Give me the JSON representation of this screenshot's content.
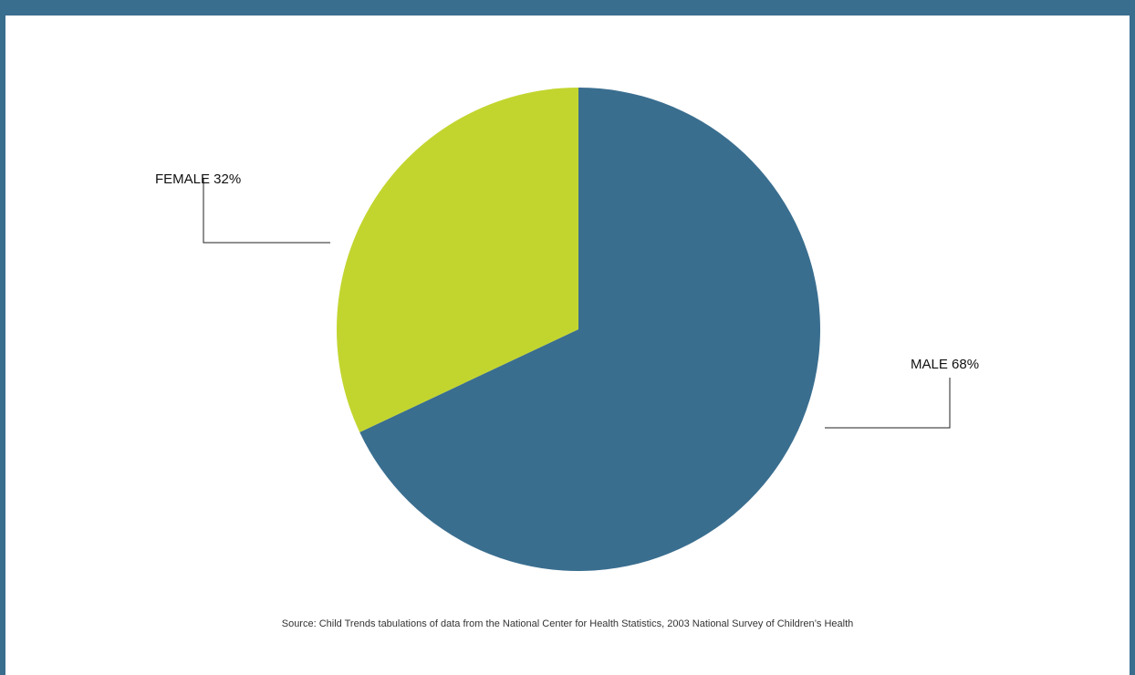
{
  "chart_data": {
    "type": "pie",
    "slices": [
      {
        "label": "MALE",
        "value": 68,
        "display": "MALE 68%",
        "color": "#3a6e8f"
      },
      {
        "label": "FEMALE",
        "value": 32,
        "display": "FEMALE 32%",
        "color": "#c2d52f"
      }
    ],
    "start_angle": "top, clockwise"
  },
  "colors": {
    "frame": "#3a6e8f",
    "male": "#3a6e8f",
    "female": "#c2d52f"
  },
  "source": "Source: Child Trends tabulations of data from the National Center for Health Statistics, 2003 National Survey of Children’s Health"
}
